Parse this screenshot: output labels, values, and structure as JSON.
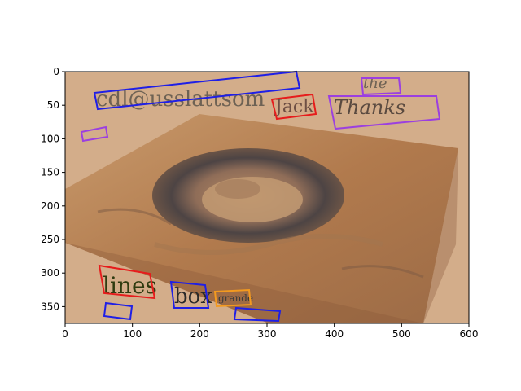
{
  "axes": {
    "x_ticks": [
      "0",
      "100",
      "200",
      "300",
      "400",
      "500",
      "600"
    ],
    "y_ticks": [
      "0",
      "50",
      "100",
      "150",
      "200",
      "250",
      "300",
      "350"
    ],
    "xlim": [
      0,
      600
    ],
    "ylim": [
      375,
      0
    ]
  },
  "colors": {
    "background": "#d3ad8a",
    "terrain_light": "#c08a5a",
    "terrain_dark": "#5b4b45",
    "box_blue": "#1f1fe6",
    "box_red": "#e61c1c",
    "box_purple": "#9b3fe0",
    "box_orange": "#f39a1f"
  },
  "overlay_words": {
    "w1": "cdl@usslattsom",
    "w2": "Jack",
    "w3": "Thanks",
    "w4": "the",
    "w5": "lines",
    "w6": "box",
    "w7": "grande"
  },
  "image": {
    "description_icon": "mars-crater-terrain"
  }
}
